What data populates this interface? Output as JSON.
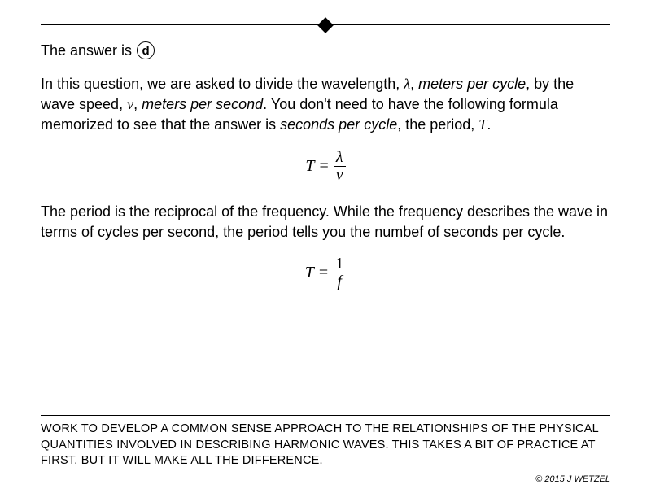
{
  "answer": {
    "prefix": "The answer is",
    "letter": "d"
  },
  "para1": {
    "t1": "In this question, we are asked to divide the wavelength, ",
    "lambda": "λ",
    "t2": ", ",
    "mpc": "meters per cycle",
    "t3": ", by the wave speed, ",
    "v": "v",
    "t4": ", ",
    "mps": "meters per second",
    "t5": ".  You don't need to have the following formula memorized to see that the answer is ",
    "spc": "seconds per cycle",
    "t6": ", the period, ",
    "T": "T",
    "t7": "."
  },
  "eq1": {
    "lhs": "T",
    "eq": "=",
    "num": "λ",
    "den": "v"
  },
  "para2": "The period is the reciprocal of the frequency.  While the frequency describes the wave in terms of cycles per second, the period tells you the numbef of seconds per cycle.",
  "eq2": {
    "lhs": "T",
    "eq": "=",
    "num": "1",
    "den": "f"
  },
  "footer": "WORK TO DEVELOP A COMMON SENSE APPROACH TO THE RELATIONSHIPS OF THE PHYSICAL QUANTITIES INVOLVED IN DESCRIBING HARMONIC WAVES.  THIS TAKES A BIT OF PRACTICE AT FIRST, BUT IT WILL MAKE ALL THE DIFFERENCE.",
  "copyright": "© 2015 J WETZEL"
}
